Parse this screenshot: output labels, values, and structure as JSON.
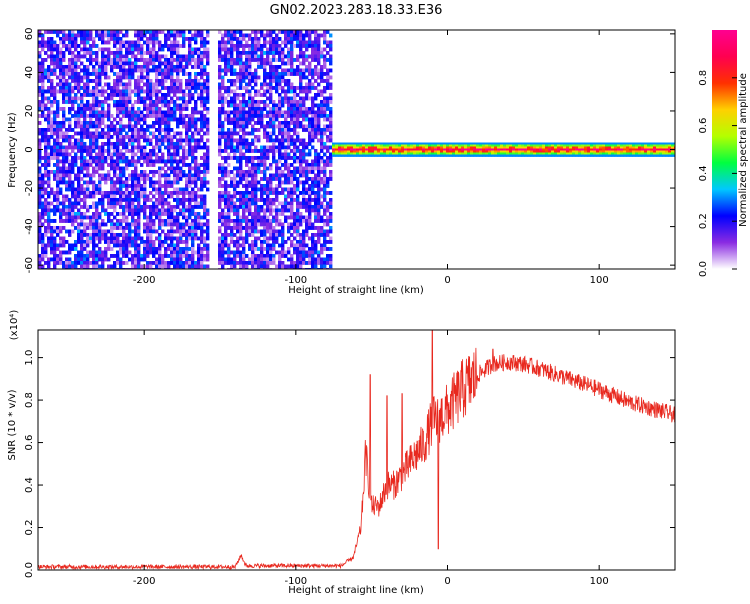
{
  "title": "GN02.2023.283.18.33.E36",
  "chart_data": [
    {
      "type": "heatmap",
      "xlabel": "Height of straight line (km)",
      "ylabel": "Frequency (Hz)",
      "xlim": [
        -270,
        150
      ],
      "ylim": [
        -62,
        62
      ],
      "x_ticks": [
        -200,
        -100,
        0,
        100
      ],
      "y_ticks": [
        -60,
        -40,
        -20,
        0,
        20,
        40,
        60
      ],
      "colorbar": {
        "label": "Normalized spectral amplitude",
        "range": [
          0.0,
          1.0
        ],
        "ticks": [
          0.0,
          0.2,
          0.4,
          0.6,
          0.8
        ],
        "colormap": [
          "#ffffff",
          "#8a2be2",
          "#0000ff",
          "#00c8ff",
          "#00ff40",
          "#b4ff00",
          "#ffd000",
          "#ff3000",
          "#ff0050",
          "#ff0090"
        ]
      },
      "description_free": true,
      "regions": {
        "broadband_noise_x_range": [
          -270,
          -78
        ],
        "broadband_gap_x": -155,
        "narrowband_center_freq": 0,
        "narrowband_x_range": [
          -78,
          150
        ]
      }
    },
    {
      "type": "line",
      "xlabel": "Height of straight line (km)",
      "ylabel": "SNR (10 * v/v)",
      "y_multiplier_label": "(x10⁴)",
      "xlim": [
        -270,
        150
      ],
      "ylim": [
        0,
        1.13
      ],
      "x_ticks": [
        -200,
        -100,
        0,
        100
      ],
      "y_ticks": [
        0.0,
        0.2,
        0.4,
        0.6,
        0.8,
        1.0
      ],
      "color": "#e8281e",
      "envelope": {
        "x": [
          -270,
          -140,
          -136,
          -133,
          -70,
          -62,
          -57,
          -54,
          -50,
          -45,
          -40,
          -35,
          -30,
          -25,
          -20,
          -15,
          -10,
          -5,
          0,
          10,
          20,
          30,
          40,
          50,
          60,
          80,
          100,
          120,
          150
        ],
        "y": [
          0.015,
          0.015,
          0.07,
          0.02,
          0.02,
          0.06,
          0.2,
          0.55,
          0.3,
          0.3,
          0.4,
          0.4,
          0.45,
          0.5,
          0.55,
          0.6,
          0.7,
          0.72,
          0.75,
          0.85,
          0.92,
          0.97,
          0.98,
          0.97,
          0.95,
          0.9,
          0.85,
          0.79,
          0.73
        ]
      },
      "spikes": [
        {
          "x": -51,
          "y": 0.92
        },
        {
          "x": -40,
          "y": 0.82
        },
        {
          "x": -30,
          "y": 0.83
        },
        {
          "x": -10,
          "y": 1.13
        },
        {
          "x": -6,
          "y": 0.1
        },
        {
          "x": 30,
          "y": 1.04
        }
      ]
    }
  ]
}
